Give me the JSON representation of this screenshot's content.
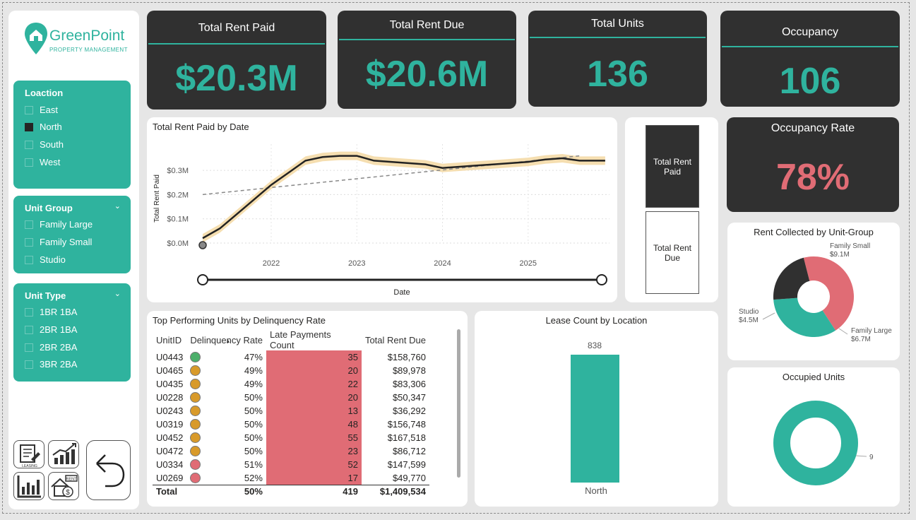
{
  "brand": {
    "name": "GreenPoint",
    "tagline": "PROPERTY MANAGEMENT"
  },
  "kpis": {
    "rent_paid": {
      "title": "Total Rent Paid",
      "value": "$20.3M"
    },
    "rent_due": {
      "title": "Total Rent Due",
      "value": "$20.6M"
    },
    "units": {
      "title": "Total Units",
      "value": "136"
    },
    "occupancy": {
      "title": "Occupancy",
      "value": "106"
    },
    "occupancy_rate": {
      "title": "Occupancy Rate",
      "value": "78%"
    }
  },
  "slicers": {
    "location": {
      "title": "Loaction",
      "options": [
        {
          "label": "East",
          "checked": false
        },
        {
          "label": "North",
          "checked": true
        },
        {
          "label": "South",
          "checked": false
        },
        {
          "label": "West",
          "checked": false
        }
      ]
    },
    "unit_group": {
      "title": "Unit Group",
      "options": [
        {
          "label": "Family Large",
          "checked": false
        },
        {
          "label": "Family Small",
          "checked": false
        },
        {
          "label": "Studio",
          "checked": false
        }
      ]
    },
    "unit_type": {
      "title": "Unit Type",
      "options": [
        {
          "label": "1BR 1BA",
          "checked": false
        },
        {
          "label": "2BR 1BA",
          "checked": false
        },
        {
          "label": "2BR 2BA",
          "checked": false
        },
        {
          "label": "3BR 2BA",
          "checked": false
        }
      ]
    }
  },
  "nav_buttons": [
    "leasing-icon",
    "growth-chart-icon",
    "bar-chart-icon",
    "rent-house-icon",
    "back-arrow-icon"
  ],
  "nav_labels": {
    "leasing": "LEASING",
    "rent": "RENT"
  },
  "toggle": {
    "paid_label": "Total Rent Paid",
    "due_label": "Total Rent Due",
    "selected": "paid"
  },
  "colors": {
    "teal": "#2fb39e",
    "dark": "#303030",
    "red": "#e06c75",
    "amber": "#d89a2a",
    "green": "#4caf6a",
    "band": "#f5deb0"
  },
  "line_chart": {
    "title": "Total Rent Paid by Date",
    "xlabel": "Date",
    "ylabel": "Total Rent Paid",
    "y_ticks": [
      "$0.3M",
      "$0.2M",
      "$0.1M",
      "$0.0M"
    ],
    "x_ticks": [
      "2022",
      "2023",
      "2024",
      "2025"
    ]
  },
  "donut_unit_group": {
    "title": "Rent Collected by Unit-Group",
    "labels": [
      {
        "name": "Family Small",
        "value": "$9.1M"
      },
      {
        "name": "Family Large",
        "value": "$6.7M"
      },
      {
        "name": "Studio",
        "value": "$4.5M"
      }
    ]
  },
  "bar_chart": {
    "title": "Lease Count by Location",
    "category": "North",
    "value_label": "838"
  },
  "donut_occupied": {
    "title": "Occupied Units",
    "label": "9"
  },
  "table": {
    "title": "Top Performing Units by Delinquency Rate",
    "headers": [
      "UnitID",
      "Delinquency Rate",
      "Late Payments Count",
      "Total Rent Due"
    ],
    "rows": [
      [
        "U0443",
        "47%",
        "35",
        "$158,760"
      ],
      [
        "U0465",
        "49%",
        "20",
        "$89,978"
      ],
      [
        "U0435",
        "49%",
        "22",
        "$83,306"
      ],
      [
        "U0228",
        "50%",
        "20",
        "$50,347"
      ],
      [
        "U0243",
        "50%",
        "13",
        "$36,292"
      ],
      [
        "U0319",
        "50%",
        "48",
        "$156,748"
      ],
      [
        "U0452",
        "50%",
        "55",
        "$167,518"
      ],
      [
        "U0472",
        "50%",
        "23",
        "$86,712"
      ],
      [
        "U0334",
        "51%",
        "52",
        "$147,599"
      ],
      [
        "U0269",
        "52%",
        "17",
        "$49,770"
      ]
    ],
    "row_status": [
      "green",
      "amber",
      "amber",
      "amber",
      "amber",
      "amber",
      "amber",
      "amber",
      "red",
      "red"
    ],
    "total": [
      "Total",
      "50%",
      "419",
      "$1,409,534"
    ]
  },
  "chart_data": [
    {
      "type": "line",
      "title": "Total Rent Paid by Date",
      "xlabel": "Date",
      "ylabel": "Total Rent Paid",
      "x": [
        2021.2,
        2021.4,
        2021.6,
        2021.8,
        2022.0,
        2022.2,
        2022.4,
        2022.6,
        2022.8,
        2023.0,
        2023.2,
        2023.4,
        2023.6,
        2023.8,
        2024.0,
        2024.2,
        2024.4,
        2024.6,
        2024.8,
        2025.0,
        2025.2,
        2025.4,
        2025.6,
        2025.9
      ],
      "series": [
        {
          "values": [
            0.02,
            0.06,
            0.12,
            0.18,
            0.24,
            0.29,
            0.34,
            0.355,
            0.36,
            0.36,
            0.34,
            0.335,
            0.33,
            0.325,
            0.31,
            0.315,
            0.32,
            0.325,
            0.33,
            0.335,
            0.345,
            0.35,
            0.34,
            0.34
          ]
        }
      ],
      "trend": {
        "x": [
          2021.2,
          2025.6
        ],
        "values": [
          0.2,
          0.36
        ]
      },
      "ylim": [
        0,
        0.35
      ],
      "xlim": [
        2021.2,
        2025.95
      ]
    },
    {
      "type": "pie",
      "title": "Rent Collected by Unit-Group",
      "categories": [
        "Family Small",
        "Family Large",
        "Studio"
      ],
      "values": [
        9.1,
        6.7,
        4.5
      ]
    },
    {
      "type": "bar",
      "title": "Lease Count by Location",
      "categories": [
        "North"
      ],
      "values": [
        838
      ]
    },
    {
      "type": "pie",
      "title": "Occupied Units",
      "categories": [
        ""
      ],
      "values": [
        9
      ]
    }
  ]
}
